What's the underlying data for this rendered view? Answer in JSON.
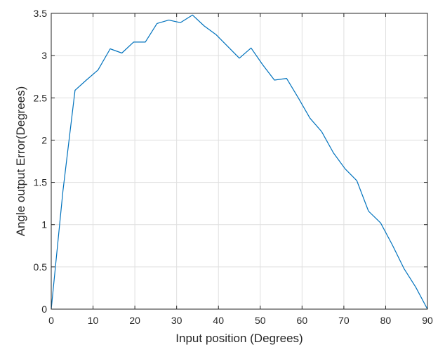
{
  "chart_data": {
    "type": "line",
    "title": "",
    "xlabel": "Input position (Degrees)",
    "ylabel": "Angle output Error(Degrees)",
    "xlim": [
      0,
      90
    ],
    "ylim": [
      0,
      3.5
    ],
    "grid": true,
    "x_ticks": [
      "0",
      "10",
      "20",
      "30",
      "40",
      "50",
      "60",
      "70",
      "80",
      "90"
    ],
    "y_ticks": [
      "0",
      "0.5",
      "1",
      "1.5",
      "2",
      "2.5",
      "3",
      "3.5"
    ],
    "series": [
      {
        "color": "#0072bd",
        "x": [
          0,
          2.8,
          5.7,
          8.4,
          11.2,
          14.1,
          16.9,
          19.7,
          22.5,
          25.3,
          28.1,
          30.9,
          33.8,
          36.6,
          39.4,
          42.2,
          45.0,
          47.8,
          50.6,
          53.4,
          56.3,
          59.1,
          61.9,
          64.7,
          67.5,
          70.3,
          73.1,
          75.9,
          78.8,
          81.6,
          84.4,
          87.2,
          90.0
        ],
        "y": [
          0,
          1.4,
          2.59,
          2.71,
          2.83,
          3.08,
          3.03,
          3.16,
          3.16,
          3.38,
          3.42,
          3.39,
          3.48,
          3.35,
          3.25,
          3.11,
          2.97,
          3.09,
          2.89,
          2.71,
          2.73,
          2.5,
          2.26,
          2.1,
          1.85,
          1.66,
          1.52,
          1.16,
          1.02,
          0.76,
          0.48,
          0.26,
          0.0
        ]
      }
    ]
  }
}
